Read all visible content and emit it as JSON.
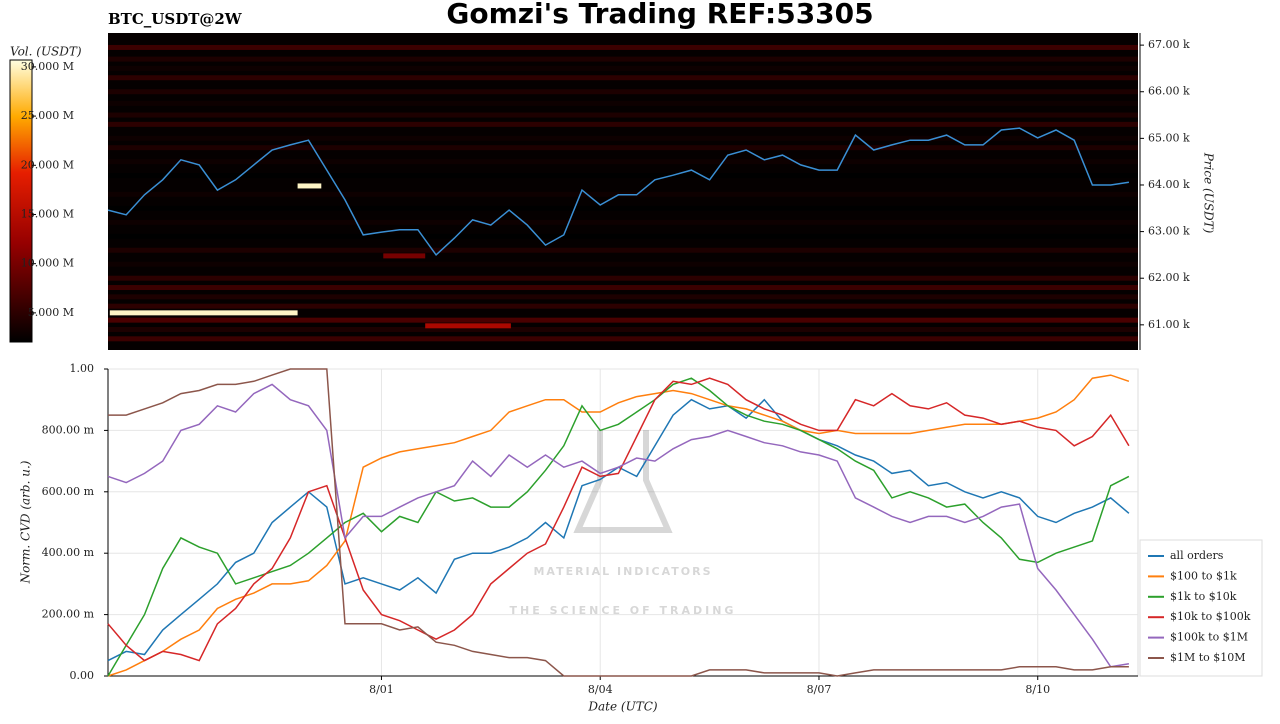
{
  "chart_data": [
    {
      "type": "heatmap",
      "title": "Gomzi's Trading REF:53305",
      "subtitle": "BTC_USDT@2W",
      "y2label": "Price (USDT)",
      "xlim": [
        0,
        56.5
      ],
      "ylim": [
        60460,
        67260
      ],
      "yticks": [
        {
          "value": 61000,
          "label": "61.00 k"
        },
        {
          "value": 62000,
          "label": "62.00 k"
        },
        {
          "value": 63000,
          "label": "63.00 k"
        },
        {
          "value": 64000,
          "label": "64.00 k"
        },
        {
          "value": 65000,
          "label": "65.00 k"
        },
        {
          "value": 66000,
          "label": "66.00 k"
        },
        {
          "value": 67000,
          "label": "67.00 k"
        }
      ],
      "levels": {
        "prices": [
          66950,
          66700,
          66500,
          66300,
          66000,
          65750,
          65500,
          65300,
          65000,
          64800,
          64500,
          64200,
          63800,
          63500,
          63200,
          62900,
          62600,
          62300,
          62000,
          61800,
          61600,
          61400,
          61100,
          60900,
          60700
        ],
        "volumes": [
          6,
          4,
          3,
          5,
          4,
          3,
          4,
          5,
          3,
          4,
          3,
          2,
          3,
          2,
          3,
          2,
          4,
          3,
          5,
          6,
          4,
          5,
          7,
          4,
          6
        ]
      },
      "walls": [
        {
          "start": 0.1,
          "end": 10.4,
          "price": 61257,
          "volume": 30
        },
        {
          "start": 10.4,
          "end": 11.7,
          "price": 63979,
          "volume": 30
        },
        {
          "start": 17.4,
          "end": 22.1,
          "price": 60979,
          "volume": 14
        },
        {
          "start": 15.1,
          "end": 17.4,
          "price": 62479,
          "volume": 10
        }
      ],
      "price": {
        "color": "#3a8fd4",
        "values": [
          63460,
          63360,
          63790,
          64110,
          64540,
          64430,
          63890,
          64110,
          64430,
          64750,
          64860,
          64960,
          64320,
          63680,
          62930,
          62990,
          63040,
          63040,
          62500,
          62860,
          63250,
          63140,
          63460,
          63140,
          62710,
          62930,
          63890,
          63570,
          63790,
          63790,
          64110,
          64210,
          64320,
          64110,
          64640,
          64750,
          64540,
          64640,
          64430,
          64320,
          64320,
          65070,
          64750,
          64860,
          64960,
          64960,
          65070,
          64860,
          64860,
          65180,
          65220,
          65010,
          65180,
          64960,
          64000,
          64000,
          64060
        ]
      },
      "colorbar": {
        "label": "Vol. (USDT)",
        "lim": [
          2.04,
          30.7
        ],
        "ticks": [
          {
            "value": 5,
            "label": "5.000 M"
          },
          {
            "value": 10,
            "label": "10.000 M"
          },
          {
            "value": 15,
            "label": "15.000 M"
          },
          {
            "value": 20,
            "label": "20.000 M"
          },
          {
            "value": 25,
            "label": "25.000 M"
          },
          {
            "value": 30,
            "label": "30.000 M"
          }
        ]
      }
    },
    {
      "type": "line",
      "xlabel": "Date (UTC)",
      "ylabel": "Norm. CVD (arb. u.)",
      "xlim": [
        0,
        56.5
      ],
      "xticks": [
        {
          "value": 15,
          "label": "8/01"
        },
        {
          "value": 27,
          "label": "8/04"
        },
        {
          "value": 39,
          "label": "8/07"
        },
        {
          "value": 51,
          "label": "8/10"
        }
      ],
      "ylim": [
        0,
        1
      ],
      "yticks": [
        {
          "value": 0,
          "label": "0.00"
        },
        {
          "value": 0.2,
          "label": "200.00 m"
        },
        {
          "value": 0.4,
          "label": "400.00 m"
        },
        {
          "value": 0.6,
          "label": "600.00 m"
        },
        {
          "value": 0.8,
          "label": "800.00 m"
        },
        {
          "value": 1,
          "label": "1.00"
        }
      ],
      "grid": true,
      "legend": "lower right",
      "watermark": {
        "title": "MATERIAL INDICATORS",
        "subtitle": "THE SCIENCE OF TRADING"
      },
      "series": [
        {
          "name": "all orders",
          "color": "#1f77b4",
          "values": [
            0.05,
            0.08,
            0.07,
            0.15,
            0.2,
            0.25,
            0.3,
            0.37,
            0.4,
            0.5,
            0.55,
            0.6,
            0.55,
            0.3,
            0.32,
            0.3,
            0.28,
            0.32,
            0.27,
            0.38,
            0.4,
            0.4,
            0.42,
            0.45,
            0.5,
            0.45,
            0.62,
            0.64,
            0.68,
            0.65,
            0.75,
            0.85,
            0.9,
            0.87,
            0.88,
            0.84,
            0.9,
            0.83,
            0.8,
            0.77,
            0.75,
            0.72,
            0.7,
            0.66,
            0.67,
            0.62,
            0.63,
            0.6,
            0.58,
            0.6,
            0.58,
            0.52,
            0.5,
            0.53,
            0.55,
            0.58,
            0.53
          ]
        },
        {
          "name": "$100 to $1k",
          "color": "#ff7f0e",
          "values": [
            0,
            0.02,
            0.05,
            0.08,
            0.12,
            0.15,
            0.22,
            0.25,
            0.27,
            0.3,
            0.3,
            0.31,
            0.36,
            0.44,
            0.68,
            0.71,
            0.73,
            0.74,
            0.75,
            0.76,
            0.78,
            0.8,
            0.86,
            0.88,
            0.9,
            0.9,
            0.86,
            0.86,
            0.89,
            0.91,
            0.92,
            0.93,
            0.92,
            0.9,
            0.88,
            0.87,
            0.85,
            0.83,
            0.8,
            0.79,
            0.8,
            0.79,
            0.79,
            0.79,
            0.79,
            0.8,
            0.81,
            0.82,
            0.82,
            0.82,
            0.83,
            0.84,
            0.86,
            0.9,
            0.97,
            0.98,
            0.96
          ]
        },
        {
          "name": "$1k to $10k",
          "color": "#2ca02c",
          "values": [
            0,
            0.1,
            0.2,
            0.35,
            0.45,
            0.42,
            0.4,
            0.3,
            0.32,
            0.34,
            0.36,
            0.4,
            0.45,
            0.5,
            0.53,
            0.47,
            0.52,
            0.5,
            0.6,
            0.57,
            0.58,
            0.55,
            0.55,
            0.6,
            0.67,
            0.75,
            0.88,
            0.8,
            0.82,
            0.86,
            0.9,
            0.95,
            0.97,
            0.93,
            0.88,
            0.85,
            0.83,
            0.82,
            0.8,
            0.77,
            0.74,
            0.7,
            0.67,
            0.58,
            0.6,
            0.58,
            0.55,
            0.56,
            0.5,
            0.45,
            0.38,
            0.37,
            0.4,
            0.42,
            0.44,
            0.62,
            0.65
          ]
        },
        {
          "name": "$10k to $100k",
          "color": "#d62728",
          "values": [
            0.17,
            0.1,
            0.05,
            0.08,
            0.07,
            0.05,
            0.17,
            0.22,
            0.3,
            0.35,
            0.45,
            0.6,
            0.62,
            0.45,
            0.28,
            0.2,
            0.18,
            0.15,
            0.12,
            0.15,
            0.2,
            0.3,
            0.35,
            0.4,
            0.43,
            0.55,
            0.68,
            0.65,
            0.66,
            0.78,
            0.9,
            0.96,
            0.95,
            0.97,
            0.95,
            0.9,
            0.87,
            0.85,
            0.82,
            0.8,
            0.8,
            0.9,
            0.88,
            0.92,
            0.88,
            0.87,
            0.89,
            0.85,
            0.84,
            0.82,
            0.83,
            0.81,
            0.8,
            0.75,
            0.78,
            0.85,
            0.75
          ]
        },
        {
          "name": "$100k to $1M",
          "color": "#9467bd",
          "values": [
            0.65,
            0.63,
            0.66,
            0.7,
            0.8,
            0.82,
            0.88,
            0.86,
            0.92,
            0.95,
            0.9,
            0.88,
            0.8,
            0.45,
            0.52,
            0.52,
            0.55,
            0.58,
            0.6,
            0.62,
            0.7,
            0.65,
            0.72,
            0.68,
            0.72,
            0.68,
            0.7,
            0.66,
            0.68,
            0.71,
            0.7,
            0.74,
            0.77,
            0.78,
            0.8,
            0.78,
            0.76,
            0.75,
            0.73,
            0.72,
            0.7,
            0.58,
            0.55,
            0.52,
            0.5,
            0.52,
            0.52,
            0.5,
            0.52,
            0.55,
            0.56,
            0.35,
            0.28,
            0.2,
            0.12,
            0.03,
            0.04
          ]
        },
        {
          "name": "$1M to $10M",
          "color": "#8c564b",
          "values": [
            0.85,
            0.85,
            0.87,
            0.89,
            0.92,
            0.93,
            0.95,
            0.95,
            0.96,
            0.98,
            1,
            1,
            1,
            0.17,
            0.17,
            0.17,
            0.15,
            0.16,
            0.11,
            0.1,
            0.08,
            0.07,
            0.06,
            0.06,
            0.05,
            0,
            0,
            0,
            0,
            0,
            0,
            0,
            0,
            0.02,
            0.02,
            0.02,
            0.01,
            0.01,
            0.01,
            0.01,
            0,
            0.01,
            0.02,
            0.02,
            0.02,
            0.02,
            0.02,
            0.02,
            0.02,
            0.02,
            0.03,
            0.03,
            0.03,
            0.02,
            0.02,
            0.03,
            0.03
          ]
        }
      ]
    }
  ]
}
